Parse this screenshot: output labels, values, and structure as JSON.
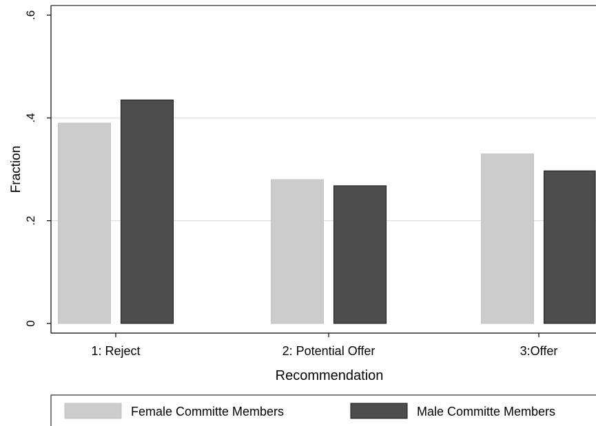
{
  "chart_data": {
    "type": "bar",
    "xlabel": "Recommendation",
    "ylabel": "Fraction",
    "ylim": [
      0,
      0.6
    ],
    "yticks": [
      0,
      0.2,
      0.4,
      0.6
    ],
    "ytick_labels": [
      "0",
      ".2",
      ".4",
      ".6"
    ],
    "grid": true,
    "legend_position": "bottom",
    "categories": [
      "1: Reject",
      "2: Potential Offer",
      "3:Offer"
    ],
    "series": [
      {
        "name": "Female Committe Members",
        "color": "#cccccc",
        "values": [
          0.39,
          0.28,
          0.33
        ]
      },
      {
        "name": "Male Committe Members",
        "color": "#4d4d4d",
        "values": [
          0.435,
          0.268,
          0.297
        ]
      }
    ]
  }
}
